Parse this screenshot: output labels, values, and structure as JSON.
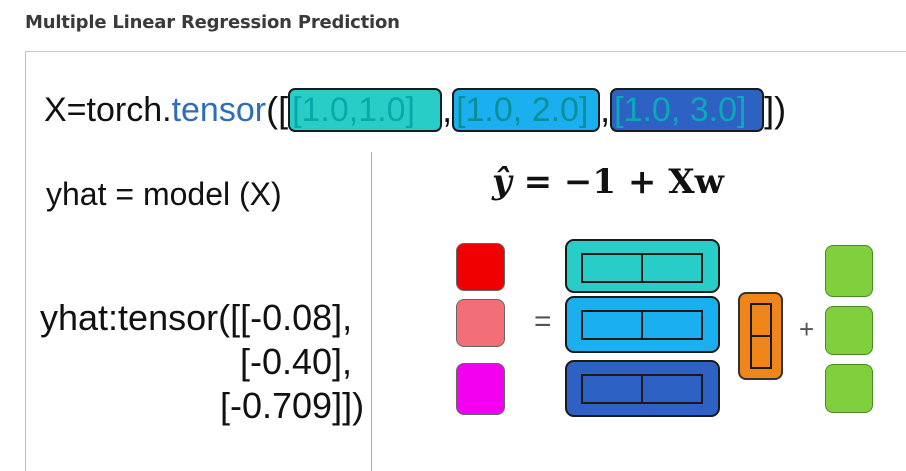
{
  "page": {
    "heading": "Multiple Linear Regression Prediction"
  },
  "slide": {
    "x_line": {
      "prefix": "X=torch.",
      "fn": "tensor",
      "open": "([",
      "rows": [
        "[1.0,1.0]",
        "[1.0, 2.0]",
        "[1.0, 3.0]"
      ],
      "close": "])",
      "row_colors": [
        "#28cdc8",
        "#1ab0ef",
        "#2d62c4"
      ]
    },
    "model_line": "yhat = model (X)",
    "equation": {
      "lhs": "ŷ",
      "rhs": "= −1 + Xw"
    },
    "output": {
      "line1": "yhat:tensor([[-0.08],",
      "line2": "[-0.40],",
      "line3": "[-0.709]])"
    },
    "diagram": {
      "yhat_colors": [
        "#f00000",
        "#f26f78",
        "#f300f0"
      ],
      "equals": "=",
      "plus": "+",
      "w_color": "#f08519",
      "bias_color": "#7fd03c"
    }
  }
}
